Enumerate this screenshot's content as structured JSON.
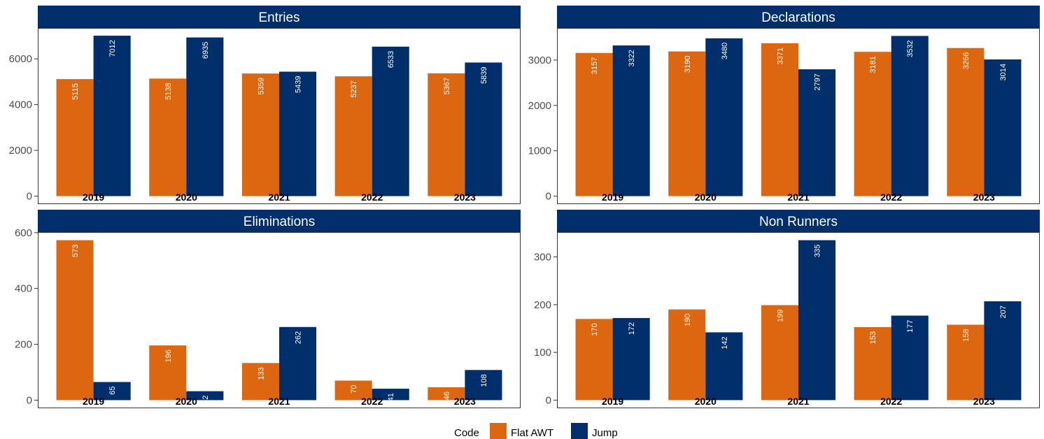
{
  "chart_data": {
    "type": "bar",
    "legend": {
      "title": "Code",
      "position": "bottom",
      "entries": [
        {
          "label": "Flat AWT",
          "color": "#dd6611"
        },
        {
          "label": "Jump",
          "color": "#002f6c"
        }
      ]
    },
    "colors": {
      "strip": "#002f6c",
      "flat": "#dd6611",
      "jump": "#002f6c"
    },
    "panels": [
      {
        "title": "Entries",
        "categories": [
          "2019",
          "2020",
          "2021",
          "2022",
          "2023"
        ],
        "series": [
          {
            "name": "Flat AWT",
            "values": [
              5115,
              5138,
              5359,
              5237,
              5367
            ]
          },
          {
            "name": "Jump",
            "values": [
              7012,
              6935,
              5439,
              6533,
              5839
            ]
          }
        ],
        "ylim": [
          -350,
          7350
        ],
        "yticks": [
          0,
          2000,
          4000,
          6000
        ]
      },
      {
        "title": "Declarations",
        "categories": [
          "2019",
          "2020",
          "2021",
          "2022",
          "2023"
        ],
        "series": [
          {
            "name": "Flat AWT",
            "values": [
              3157,
              3190,
              3371,
              3181,
              3266
            ]
          },
          {
            "name": "Jump",
            "values": [
              3322,
              3480,
              2797,
              3532,
              3014
            ]
          }
        ],
        "ylim": [
          -176,
          3708
        ],
        "yticks": [
          0,
          1000,
          2000,
          3000
        ]
      },
      {
        "title": "Eliminations",
        "categories": [
          "2019",
          "2020",
          "2021",
          "2022",
          "2023"
        ],
        "series": [
          {
            "name": "Flat AWT",
            "values": [
              573,
              196,
              133,
              70,
              46
            ]
          },
          {
            "name": "Jump",
            "values": [
              65,
              32,
              262,
              41,
              108
            ]
          }
        ],
        "ylim": [
          -29,
          602
        ],
        "yticks": [
          0,
          200,
          400,
          600
        ]
      },
      {
        "title": "Non Runners",
        "categories": [
          "2019",
          "2020",
          "2021",
          "2022",
          "2023"
        ],
        "series": [
          {
            "name": "Flat AWT",
            "values": [
              170,
              190,
              199,
              153,
              158
            ]
          },
          {
            "name": "Jump",
            "values": [
              172,
              142,
              335,
              177,
              207
            ]
          }
        ],
        "ylim": [
          -17,
          352
        ],
        "yticks": [
          0,
          100,
          200,
          300
        ]
      }
    ]
  }
}
